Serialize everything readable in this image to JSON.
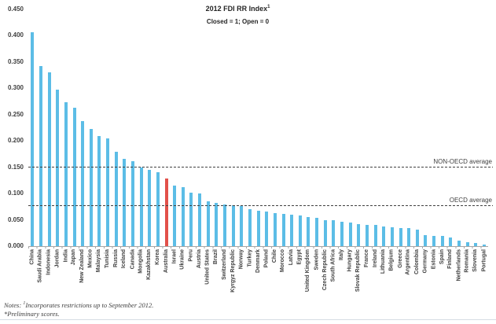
{
  "chart_data": {
    "type": "bar",
    "title": "2012 FDI RR Index",
    "title_superscript": "1",
    "subtitle": "Closed = 1; Open = 0",
    "xlabel": "",
    "ylabel": "",
    "ylim": [
      0,
      0.45
    ],
    "y_tick_labels": [
      "0.000",
      "0.050",
      "0.100",
      "0.150",
      "0.200",
      "0.250",
      "0.300",
      "0.350",
      "0.400",
      "0.450"
    ],
    "grid": "off",
    "categories": [
      "China",
      "Saudi Arabia",
      "Indonesia",
      "Jordan",
      "India",
      "Japan",
      "New Zealand",
      "Mexico",
      "Malaysia",
      "Tunisia",
      "Russia",
      "Iceland",
      "Canada",
      "Mongolia",
      "Kazakhstan",
      "Korea",
      "Australia",
      "Israel",
      "Ukraine",
      "Peru",
      "Austria",
      "United States",
      "Brazil",
      "Switzerland",
      "Kyrgyz Republic",
      "Norway",
      "Turkey",
      "Denmark",
      "Poland",
      "Chile",
      "Morocco",
      "Latvia",
      "Egypt",
      "United Kingdom",
      "Sweden",
      "Czech Republic",
      "South Africa",
      "Italy",
      "Hungary",
      "Slovak Republic",
      "France",
      "Ireland",
      "Lithuania",
      "Belgium",
      "Greece",
      "Argentina",
      "Colombia",
      "Germany",
      "Estonia",
      "Spain",
      "Finland",
      "Netherlands",
      "Romania",
      "Slovenia",
      "Portugal"
    ],
    "values": [
      0.407,
      0.343,
      0.33,
      0.298,
      0.273,
      0.263,
      0.237,
      0.223,
      0.21,
      0.205,
      0.18,
      0.166,
      0.162,
      0.15,
      0.145,
      0.14,
      0.128,
      0.115,
      0.112,
      0.102,
      0.1,
      0.085,
      0.082,
      0.08,
      0.078,
      0.076,
      0.07,
      0.067,
      0.066,
      0.063,
      0.062,
      0.06,
      0.058,
      0.056,
      0.054,
      0.05,
      0.049,
      0.046,
      0.045,
      0.042,
      0.041,
      0.04,
      0.038,
      0.036,
      0.035,
      0.034,
      0.032,
      0.021,
      0.02,
      0.019,
      0.017,
      0.011,
      0.008,
      0.006,
      0.003
    ],
    "highlight_category": "Australia",
    "highlight_index": 16,
    "colors": {
      "bar": "#5CBDE6",
      "highlight": "#E2514A"
    },
    "reference_lines": [
      {
        "label": "NON-OECD average",
        "value": 0.149
      },
      {
        "label": "OECD average",
        "value": 0.076
      }
    ],
    "legend": "none"
  },
  "notes": {
    "prefix": "Notes: ",
    "sup": "1",
    "line1": "Incorporates restrictions up to September 2012.",
    "line2": "*Preliminary scores."
  }
}
